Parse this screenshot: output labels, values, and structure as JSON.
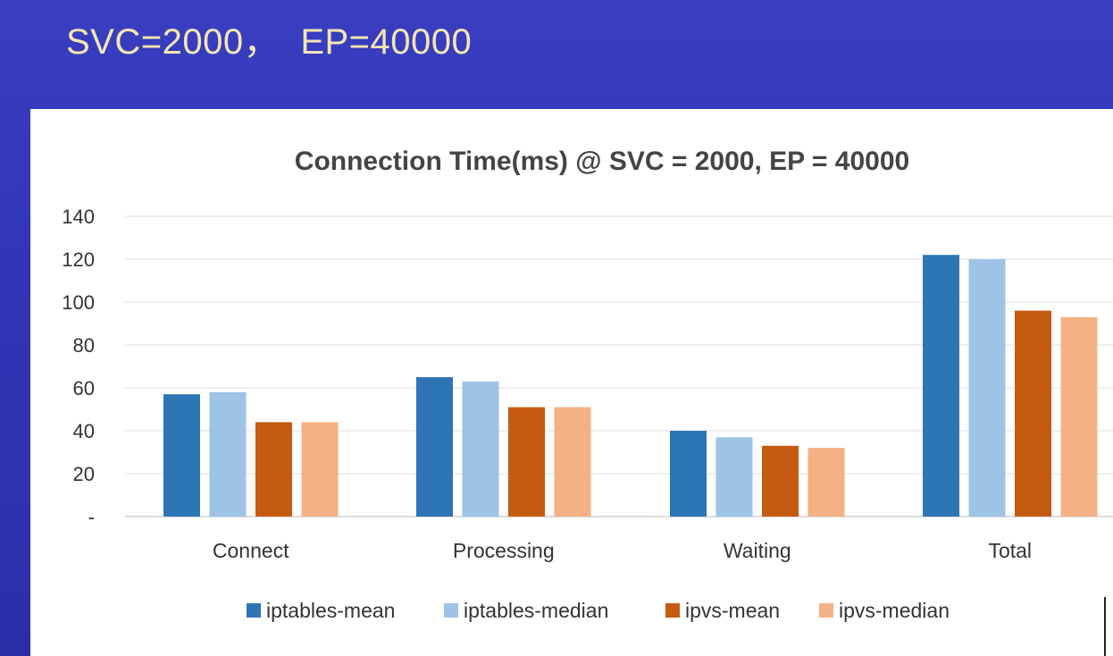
{
  "slide": {
    "title": "SVC=2000，  EP=40000"
  },
  "chart_data": {
    "type": "bar",
    "title": "Connection Time(ms) @ SVC = 2000, EP = 40000",
    "categories": [
      "Connect",
      "Processing",
      "Waiting",
      "Total"
    ],
    "series": [
      {
        "name": "iptables-mean",
        "color": "#2e75b6",
        "values": [
          57,
          65,
          40,
          122
        ]
      },
      {
        "name": "iptables-median",
        "color": "#9dc3e6",
        "values": [
          58,
          63,
          37,
          120
        ]
      },
      {
        "name": "ipvs-mean",
        "color": "#c55a11",
        "values": [
          44,
          51,
          33,
          96
        ]
      },
      {
        "name": "ipvs-median",
        "color": "#f4b183",
        "values": [
          44,
          51,
          32,
          93
        ]
      }
    ],
    "y_ticks": [
      "-",
      "20",
      "40",
      "60",
      "80",
      "100",
      "120",
      "140"
    ],
    "ylim": [
      0,
      140
    ],
    "ystep": 20,
    "grid": true,
    "legend_position": "bottom",
    "xlabel": "",
    "ylabel": ""
  }
}
